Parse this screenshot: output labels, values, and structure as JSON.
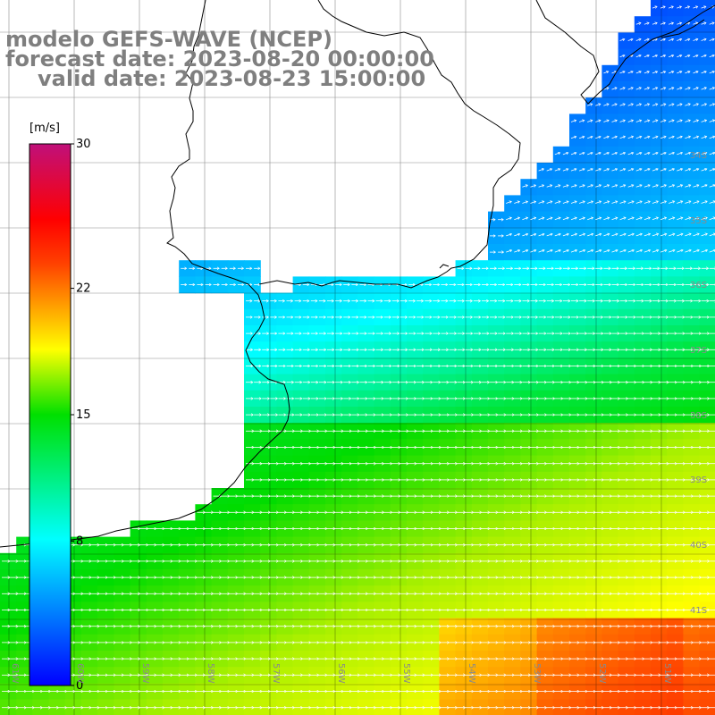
{
  "title": {
    "line1": "modelo GEFS-WAVE (NCEP)",
    "line2": "forecast date: 2023-08-20 00:00:00",
    "line3": "valid date: 2023-08-23 15:00:00"
  },
  "colorbar": {
    "unit": "[m/s]",
    "ticks": [
      "30",
      "22",
      "15",
      "8",
      "0"
    ],
    "tick_values": [
      30,
      22,
      15,
      8,
      0
    ],
    "min": 0,
    "max": 30
  },
  "map": {
    "lat_labels": [
      "34S",
      "35S",
      "36S",
      "37S",
      "38S",
      "39S",
      "40S",
      "41S"
    ],
    "lon_labels": [
      "61W",
      "60W",
      "59W",
      "58W",
      "57W",
      "56W",
      "55W",
      "54W",
      "53W",
      "52W",
      "51W"
    ],
    "wind_direction": "eastward"
  }
}
